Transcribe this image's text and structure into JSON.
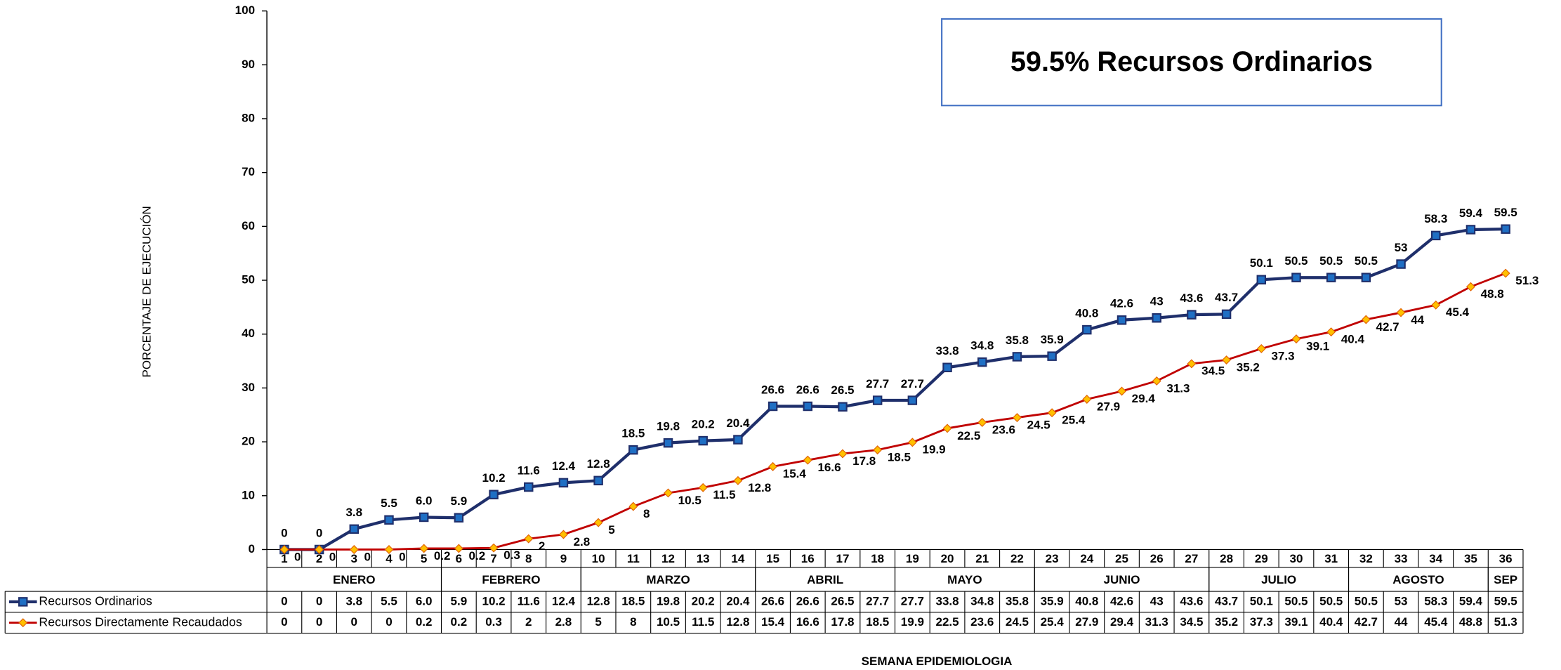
{
  "chart_data": {
    "type": "line",
    "title": "59.5% Recursos Ordinarios",
    "y_label": "PORCENTAJE DE EJECUCIÓN",
    "x_label": "SEMANA EPIDEMIOLOGIA",
    "categories": [
      "1",
      "2",
      "3",
      "4",
      "5",
      "6",
      "7",
      "8",
      "9",
      "10",
      "11",
      "12",
      "13",
      "14",
      "15",
      "16",
      "17",
      "18",
      "19",
      "20",
      "21",
      "22",
      "23",
      "24",
      "25",
      "26",
      "27",
      "28",
      "29",
      "30",
      "31",
      "32",
      "33",
      "34",
      "35",
      "36"
    ],
    "months": [
      {
        "label": "ENERO",
        "first_week": 1,
        "last_week": 5
      },
      {
        "label": "FEBRERO",
        "first_week": 6,
        "last_week": 9
      },
      {
        "label": "MARZO",
        "first_week": 10,
        "last_week": 14
      },
      {
        "label": "ABRIL",
        "first_week": 15,
        "last_week": 18
      },
      {
        "label": "MAYO",
        "first_week": 19,
        "last_week": 22
      },
      {
        "label": "JUNIO",
        "first_week": 23,
        "last_week": 27
      },
      {
        "label": "JULIO",
        "first_week": 28,
        "last_week": 31
      },
      {
        "label": "AGOSTO",
        "first_week": 32,
        "last_week": 35
      },
      {
        "label": "SEP",
        "first_week": 36,
        "last_week": 36
      }
    ],
    "series": [
      {
        "name": "Recursos Ordinarios",
        "color": "#1f2f6b",
        "marker_color": "#1f6fc4",
        "marker": "square",
        "values": [
          0,
          0,
          3.8,
          5.5,
          6.0,
          5.9,
          10.2,
          11.6,
          12.4,
          12.8,
          18.5,
          19.8,
          20.2,
          20.4,
          26.6,
          26.6,
          26.5,
          27.7,
          27.7,
          33.8,
          34.8,
          35.8,
          35.9,
          40.8,
          42.6,
          43,
          43.6,
          43.7,
          50.1,
          50.5,
          50.5,
          50.5,
          53,
          58.3,
          59.4,
          59.5
        ],
        "value_labels": [
          "0",
          "0",
          "3.8",
          "5.5",
          "6.0",
          "5.9",
          "10.2",
          "11.6",
          "12.4",
          "12.8",
          "18.5",
          "19.8",
          "20.2",
          "20.4",
          "26.6",
          "26.6",
          "26.5",
          "27.7",
          "27.7",
          "33.8",
          "34.8",
          "35.8",
          "35.9",
          "40.8",
          "42.6",
          "43",
          "43.6",
          "43.7",
          "50.1",
          "50.5",
          "50.5",
          "50.5",
          "53",
          "58.3",
          "59.4",
          "59.5"
        ]
      },
      {
        "name": "Recursos Directamente Recaudados",
        "color": "#c00000",
        "marker_color": "#ffc000",
        "marker": "diamond",
        "values": [
          0,
          0,
          0,
          0,
          0.2,
          0.2,
          0.3,
          2,
          2.8,
          5,
          8,
          10.5,
          11.5,
          12.8,
          15.4,
          16.6,
          17.8,
          18.5,
          19.9,
          22.5,
          23.6,
          24.5,
          25.4,
          27.9,
          29.4,
          31.3,
          34.5,
          35.2,
          37.3,
          39.1,
          40.4,
          42.7,
          44,
          45.4,
          48.8,
          51.3
        ]
      }
    ],
    "ylim": [
      0,
      100
    ],
    "yticks": [
      0,
      10,
      20,
      30,
      40,
      50,
      60,
      70,
      80,
      90,
      100
    ],
    "grid": false
  }
}
